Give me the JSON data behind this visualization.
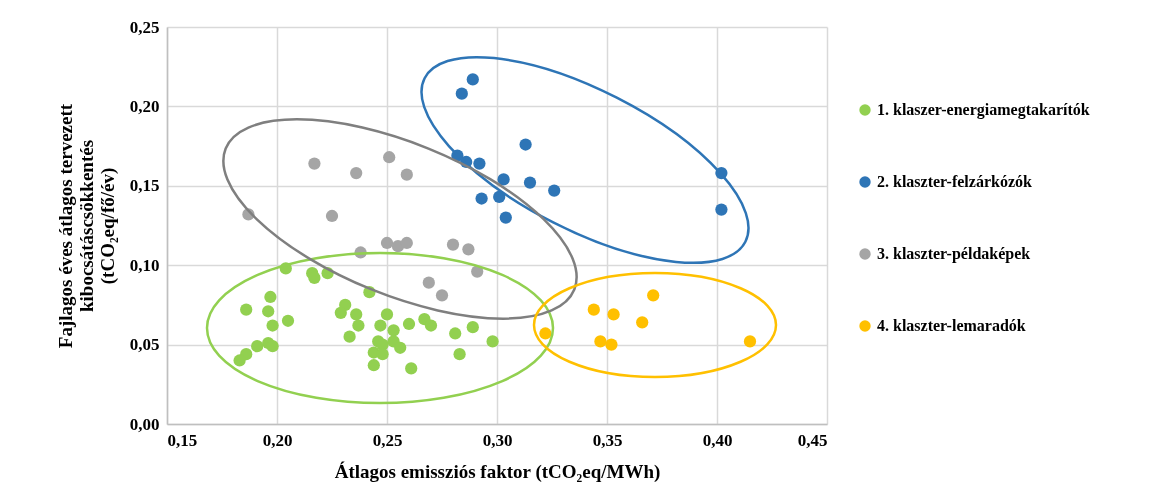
{
  "chart_data": {
    "type": "scatter",
    "xlabel": "Átlagos emissziós faktor (tCO₂eq/MWh)",
    "ylabel": "Fajlagos éves átlagos tervezett kibocsátáscsökkentés (tCO₂eq/fő/év)",
    "xlim": [
      0.15,
      0.45
    ],
    "ylim": [
      0,
      0.25
    ],
    "xticks": [
      {
        "value": 0.15,
        "label": "0,15"
      },
      {
        "value": 0.2,
        "label": "0,20"
      },
      {
        "value": 0.25,
        "label": "0,25"
      },
      {
        "value": 0.3,
        "label": "0,30"
      },
      {
        "value": 0.35,
        "label": "0,35"
      },
      {
        "value": 0.4,
        "label": "0,40"
      },
      {
        "value": 0.45,
        "label": "0,45"
      }
    ],
    "yticks": [
      {
        "value": 0,
        "label": "0,00"
      },
      {
        "value": 0.05,
        "label": "0,05"
      },
      {
        "value": 0.1,
        "label": "0,10"
      },
      {
        "value": 0.15,
        "label": "0,15"
      },
      {
        "value": 0.2,
        "label": "0,20"
      },
      {
        "value": 0.25,
        "label": "0,25"
      }
    ],
    "grid": true,
    "legend": "right",
    "marker": "circle",
    "series": [
      {
        "name": "1. klaszer-energiamegtakarítók",
        "color": "#92d050",
        "x": [
          0.204,
          0.216,
          0.217,
          0.223,
          0.197,
          0.186,
          0.196,
          0.198,
          0.205,
          0.242,
          0.231,
          0.229,
          0.236,
          0.237,
          0.233,
          0.25,
          0.247,
          0.253,
          0.246,
          0.248,
          0.253,
          0.244,
          0.248,
          0.256,
          0.26,
          0.267,
          0.27,
          0.281,
          0.289,
          0.298,
          0.283,
          0.244,
          0.261,
          0.191,
          0.196,
          0.198,
          0.186,
          0.183
        ],
        "values": [
          0.098,
          0.095,
          0.092,
          0.095,
          0.08,
          0.072,
          0.071,
          0.062,
          0.065,
          0.083,
          0.075,
          0.07,
          0.069,
          0.062,
          0.055,
          0.069,
          0.062,
          0.059,
          0.052,
          0.05,
          0.052,
          0.045,
          0.044,
          0.048,
          0.063,
          0.066,
          0.062,
          0.057,
          0.061,
          0.052,
          0.044,
          0.037,
          0.035,
          0.049,
          0.051,
          0.049,
          0.044,
          0.04
        ]
      },
      {
        "name": "2. klaszter-felzárkózók",
        "color": "#2e75b6",
        "x": [
          0.289,
          0.284,
          0.282,
          0.286,
          0.292,
          0.313,
          0.303,
          0.315,
          0.326,
          0.293,
          0.301,
          0.304,
          0.402,
          0.402
        ],
        "values": [
          0.217,
          0.208,
          0.169,
          0.165,
          0.164,
          0.176,
          0.154,
          0.152,
          0.147,
          0.142,
          0.143,
          0.13,
          0.158,
          0.135
        ]
      },
      {
        "name": "3. klaszter-példaképek",
        "color": "#a5a5a5",
        "x": [
          0.217,
          0.236,
          0.251,
          0.259,
          0.187,
          0.225,
          0.238,
          0.25,
          0.255,
          0.259,
          0.28,
          0.287,
          0.291,
          0.269,
          0.275
        ],
        "values": [
          0.164,
          0.158,
          0.168,
          0.157,
          0.132,
          0.131,
          0.108,
          0.114,
          0.112,
          0.114,
          0.113,
          0.11,
          0.096,
          0.089,
          0.081
        ]
      },
      {
        "name": "4. klaszter-lemaradók",
        "color": "#ffc000",
        "x": [
          0.322,
          0.344,
          0.353,
          0.347,
          0.352,
          0.366,
          0.371,
          0.415
        ],
        "values": [
          0.057,
          0.072,
          0.069,
          0.052,
          0.05,
          0.064,
          0.081,
          0.052
        ]
      }
    ]
  }
}
